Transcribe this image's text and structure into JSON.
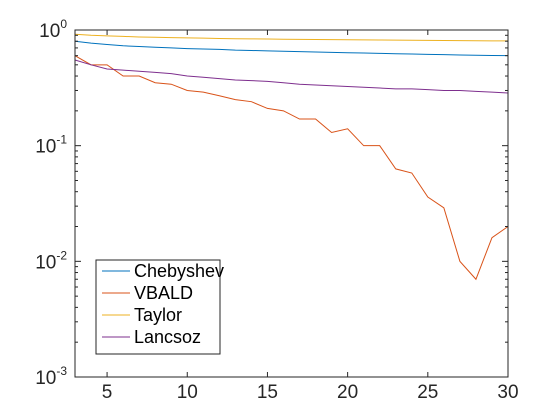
{
  "chart_data": {
    "type": "line",
    "title": "",
    "xlabel": "",
    "ylabel": "",
    "xlim": [
      3,
      30
    ],
    "ylim": [
      0.001,
      1
    ],
    "yscale": "log",
    "grid": false,
    "legend_position": "bottom-left",
    "x_ticks": [
      {
        "value": 5,
        "label": "5"
      },
      {
        "value": 10,
        "label": "10"
      },
      {
        "value": 15,
        "label": "15"
      },
      {
        "value": 20,
        "label": "20"
      },
      {
        "value": 25,
        "label": "25"
      },
      {
        "value": 30,
        "label": "30"
      }
    ],
    "y_ticks": [
      {
        "value": 1,
        "base": "10",
        "exp": "0"
      },
      {
        "value": 0.1,
        "base": "10",
        "exp": "-1"
      },
      {
        "value": 0.01,
        "base": "10",
        "exp": "-2"
      },
      {
        "value": 0.001,
        "base": "10",
        "exp": "-3"
      }
    ],
    "x": [
      3,
      4,
      5,
      6,
      7,
      8,
      9,
      10,
      11,
      12,
      13,
      14,
      15,
      16,
      17,
      18,
      19,
      20,
      21,
      22,
      23,
      24,
      25,
      26,
      27,
      28,
      29,
      30
    ],
    "series": [
      {
        "name": "Chebyshev",
        "color": "#0072bd",
        "values": [
          0.8,
          0.77,
          0.75,
          0.73,
          0.72,
          0.71,
          0.7,
          0.69,
          0.685,
          0.68,
          0.67,
          0.665,
          0.66,
          0.655,
          0.65,
          0.645,
          0.64,
          0.635,
          0.632,
          0.628,
          0.624,
          0.62,
          0.616,
          0.612,
          0.608,
          0.605,
          0.602,
          0.6
        ]
      },
      {
        "name": "VBALD",
        "color": "#d95319",
        "values": [
          0.6,
          0.5,
          0.5,
          0.4,
          0.4,
          0.35,
          0.34,
          0.3,
          0.29,
          0.27,
          0.25,
          0.24,
          0.21,
          0.2,
          0.17,
          0.17,
          0.13,
          0.14,
          0.1,
          0.1,
          0.063,
          0.058,
          0.036,
          0.029,
          0.01,
          0.007,
          0.016,
          0.02
        ]
      },
      {
        "name": "Taylor",
        "color": "#edb120",
        "values": [
          0.92,
          0.9,
          0.89,
          0.88,
          0.87,
          0.865,
          0.86,
          0.855,
          0.85,
          0.845,
          0.84,
          0.838,
          0.835,
          0.832,
          0.83,
          0.828,
          0.826,
          0.824,
          0.822,
          0.82,
          0.818,
          0.816,
          0.814,
          0.812,
          0.81,
          0.808,
          0.806,
          0.805
        ]
      },
      {
        "name": "Lancsoz",
        "color": "#7e2f8e",
        "values": [
          0.55,
          0.5,
          0.46,
          0.45,
          0.44,
          0.43,
          0.42,
          0.4,
          0.39,
          0.38,
          0.37,
          0.365,
          0.36,
          0.35,
          0.34,
          0.335,
          0.33,
          0.325,
          0.32,
          0.315,
          0.31,
          0.31,
          0.305,
          0.3,
          0.3,
          0.295,
          0.29,
          0.285
        ]
      }
    ]
  }
}
